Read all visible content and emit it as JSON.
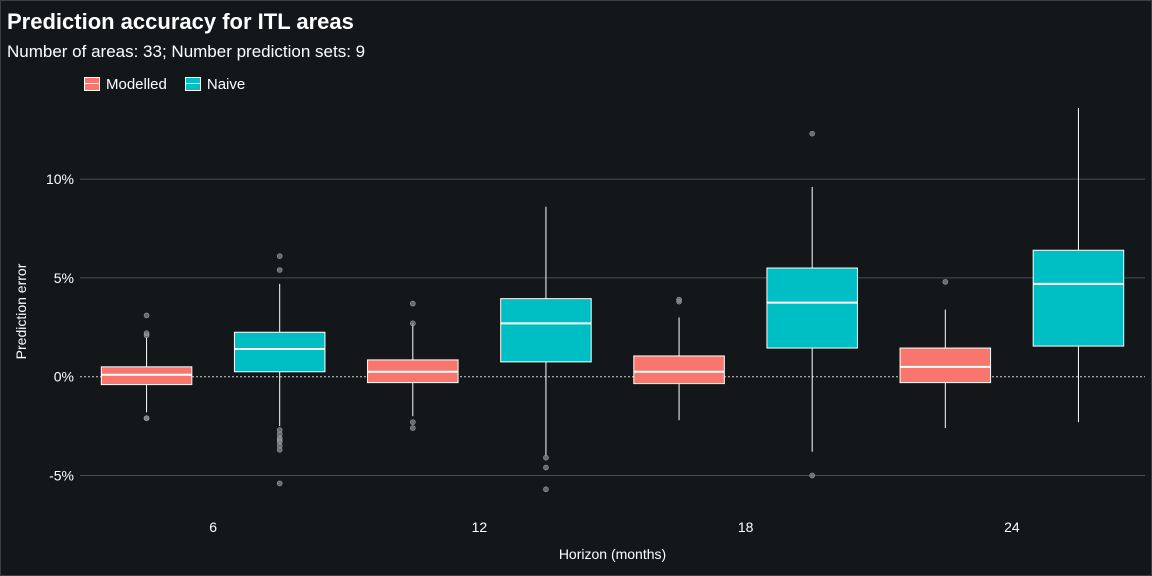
{
  "chart_data": {
    "type": "box",
    "title": "Prediction accuracy for ITL areas",
    "subtitle": "Number of areas: 33; Number prediction sets: 9",
    "xlabel": "Horizon (months)",
    "ylabel": "Prediction error",
    "categories": [
      "6",
      "12",
      "18",
      "24"
    ],
    "ylim": [
      -7,
      13.6
    ],
    "y_ticks": [
      -5,
      0,
      5,
      10
    ],
    "y_tick_labels": [
      "-5%",
      "0%",
      "5%",
      "10%"
    ],
    "zero_line": true,
    "legend_position": "top-left",
    "series": [
      {
        "name": "Modelled",
        "color": "#f8766d",
        "boxes": [
          {
            "category": "6",
            "min": -1.8,
            "q1": -0.4,
            "median": 0.1,
            "q3": 0.5,
            "max": 2.0,
            "outliers": [
              3.1,
              2.1,
              2.2,
              -2.1,
              -2.1
            ]
          },
          {
            "category": "12",
            "min": -2.0,
            "q1": -0.3,
            "median": 0.25,
            "q3": 0.85,
            "max": 2.7,
            "outliers": [
              3.7,
              2.7,
              -2.3,
              -2.6
            ]
          },
          {
            "category": "18",
            "min": -2.2,
            "q1": -0.35,
            "median": 0.25,
            "q3": 1.05,
            "max": 3.0,
            "outliers": [
              3.8,
              3.9
            ]
          },
          {
            "category": "24",
            "min": -2.6,
            "q1": -0.3,
            "median": 0.5,
            "q3": 1.45,
            "max": 3.4,
            "outliers": [
              4.8
            ]
          }
        ]
      },
      {
        "name": "Naive",
        "color": "#00bfc4",
        "boxes": [
          {
            "category": "6",
            "min": -2.5,
            "q1": 0.25,
            "median": 1.4,
            "q3": 2.25,
            "max": 4.7,
            "outliers": [
              6.1,
              5.4,
              -2.7,
              -2.9,
              -3.1,
              -3.2,
              -3.3,
              -3.5,
              -3.7,
              -5.4
            ]
          },
          {
            "category": "12",
            "min": -4.0,
            "q1": 0.75,
            "median": 2.7,
            "q3": 3.95,
            "max": 8.6,
            "outliers": [
              -4.1,
              -4.6,
              -5.7
            ]
          },
          {
            "category": "18",
            "min": -3.8,
            "q1": 1.45,
            "median": 3.75,
            "q3": 5.5,
            "max": 9.6,
            "outliers": [
              12.3,
              -5.0
            ]
          },
          {
            "category": "24",
            "min": -2.3,
            "q1": 1.55,
            "median": 4.7,
            "q3": 6.4,
            "max": 13.6,
            "outliers": []
          }
        ]
      }
    ]
  }
}
